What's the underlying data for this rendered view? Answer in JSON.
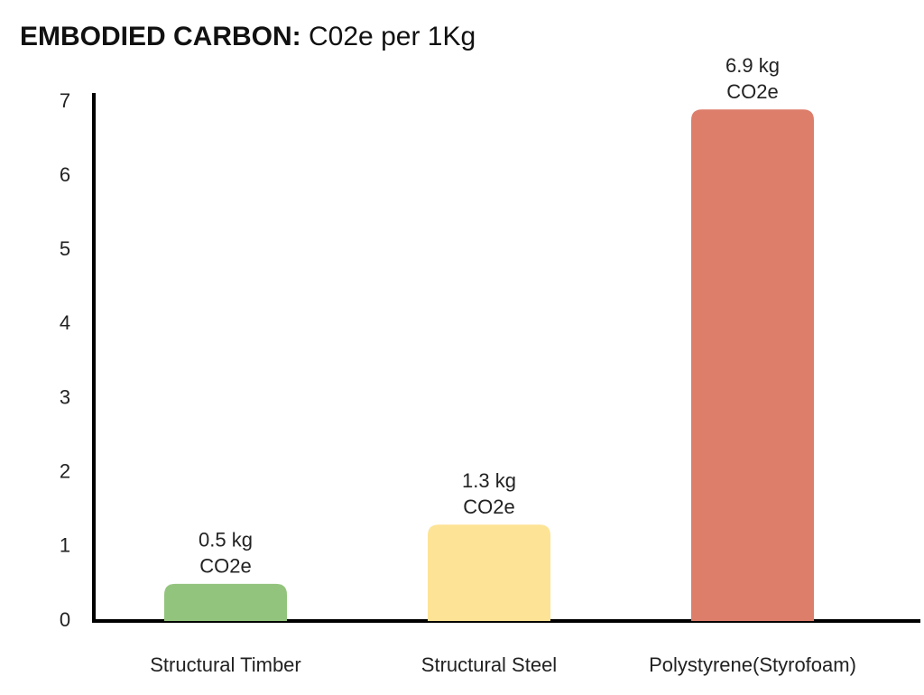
{
  "chart_data": {
    "type": "bar",
    "title": [
      "EMBODIED CARBON:",
      "C02e per 1Kg"
    ],
    "categories": [
      "Structural Timber",
      "Structural Steel",
      "Polystyrene(Styrofoam)"
    ],
    "values": [
      0.5,
      1.3,
      6.9
    ],
    "value_labels": [
      [
        "0.5 kg",
        "CO2e"
      ],
      [
        "1.3 kg",
        "CO2e"
      ],
      [
        "6.9 kg",
        "CO2e"
      ]
    ],
    "colors": [
      "#93c47d",
      "#fde395",
      "#dd7e6b"
    ],
    "ylim": [
      0,
      7
    ],
    "yticks": [
      0,
      1,
      2,
      3,
      4,
      5,
      6,
      7
    ],
    "grid": false
  }
}
